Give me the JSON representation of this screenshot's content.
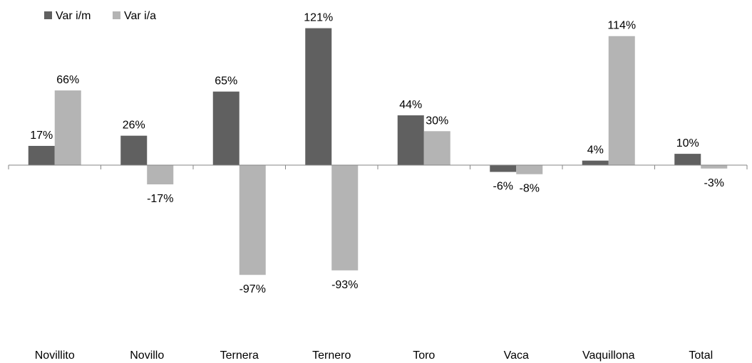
{
  "chart_data": {
    "type": "bar",
    "title": "",
    "xlabel": "",
    "ylabel": "",
    "ylim": [
      -120,
      125
    ],
    "grid": false,
    "legend_position": "top-left",
    "categories": [
      "Novillito",
      "Novillo",
      "Ternera",
      "Ternero",
      "Toro",
      "Vaca",
      "Vaquillona",
      "Total"
    ],
    "series": [
      {
        "name": "Var i/m",
        "color": "#606060",
        "values": [
          17,
          26,
          65,
          121,
          44,
          -6,
          4,
          10
        ],
        "labels": [
          "17%",
          "26%",
          "65%",
          "121%",
          "44%",
          "-6%",
          "4%",
          "10%"
        ]
      },
      {
        "name": "Var i/a",
        "color": "#b4b4b4",
        "values": [
          66,
          -17,
          -97,
          -93,
          30,
          -8,
          114,
          -3
        ],
        "labels": [
          "66%",
          "-17%",
          "-97%",
          "-93%",
          "30%",
          "-8%",
          "114%",
          "-3%"
        ]
      }
    ]
  }
}
